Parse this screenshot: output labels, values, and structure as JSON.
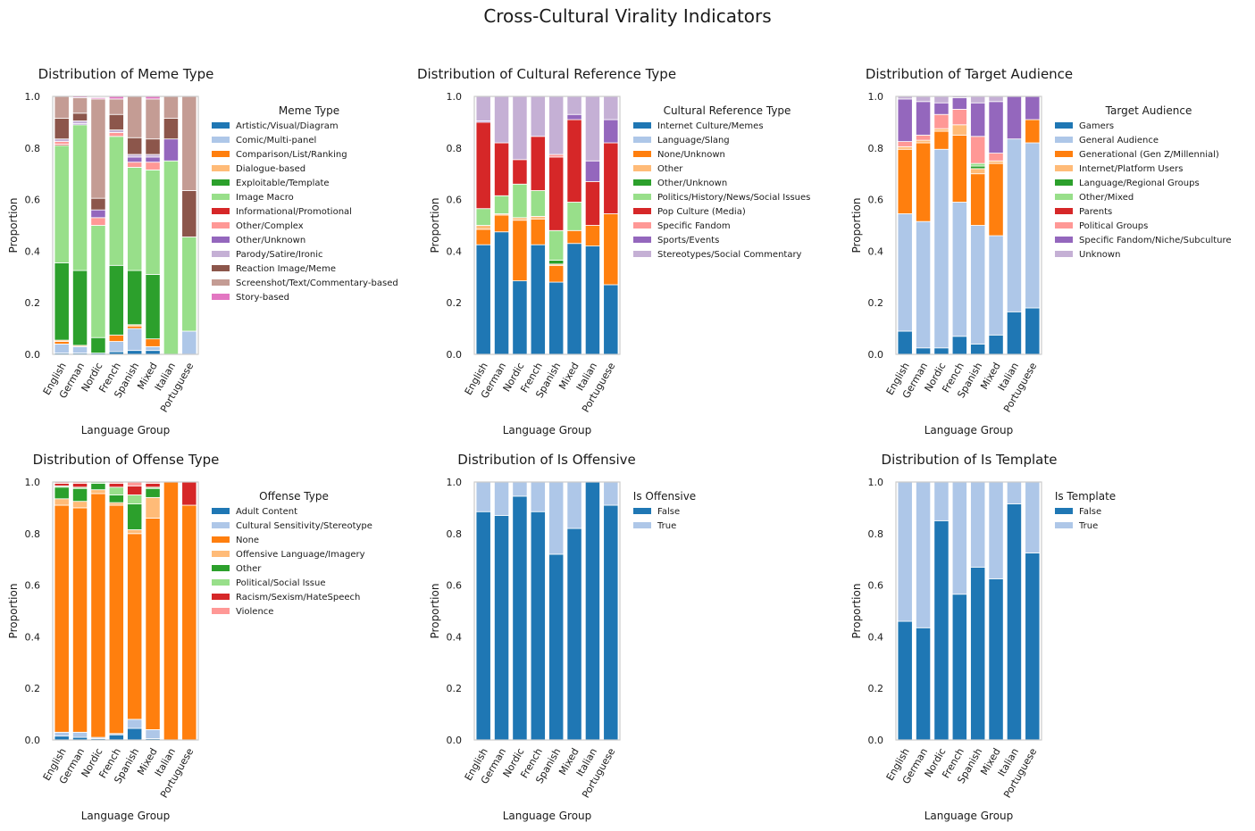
{
  "title": "Cross-Cultural Virality Indicators",
  "chart_data": [
    {
      "type": "bar",
      "stacked": true,
      "title": "Distribution of Meme Type",
      "xlabel": "Language Group",
      "ylabel": "Proportion",
      "ylim": [
        0,
        1
      ],
      "yticks": [
        "0.0",
        "0.2",
        "0.4",
        "0.6",
        "0.8",
        "1.0"
      ],
      "legend_title": "Meme Type",
      "categories": [
        "English",
        "German",
        "Nordic",
        "French",
        "Spanish",
        "Mixed",
        "Italian",
        "Portuguese"
      ],
      "series": [
        {
          "name": "Artistic/Visual/Diagram",
          "color": "#1f77b4",
          "values": [
            0.005,
            0.005,
            0.005,
            0.01,
            0.015,
            0.015,
            0,
            0
          ]
        },
        {
          "name": "Comic/Multi-panel",
          "color": "#aec7e8",
          "values": [
            0.035,
            0.025,
            0,
            0.04,
            0.085,
            0.015,
            0,
            0.09
          ]
        },
        {
          "name": "Comparison/List/Ranking",
          "color": "#ff7f0e",
          "values": [
            0.01,
            0,
            0,
            0.025,
            0.01,
            0.03,
            0,
            0
          ]
        },
        {
          "name": "Dialogue-based",
          "color": "#ffbb78",
          "values": [
            0.005,
            0.005,
            0,
            0,
            0.005,
            0,
            0,
            0
          ]
        },
        {
          "name": "Exploitable/Template",
          "color": "#2ca02c",
          "values": [
            0.3,
            0.29,
            0.06,
            0.27,
            0.21,
            0.25,
            0,
            0
          ]
        },
        {
          "name": "Image Macro",
          "color": "#98df8a",
          "values": [
            0.455,
            0.565,
            0.435,
            0.5,
            0.4,
            0.405,
            0.75,
            0.365
          ]
        },
        {
          "name": "Informational/Promotional",
          "color": "#d62728",
          "values": [
            0.005,
            0,
            0,
            0,
            0,
            0,
            0,
            0
          ]
        },
        {
          "name": "Other/Complex",
          "color": "#ff9896",
          "values": [
            0.01,
            0,
            0.03,
            0.015,
            0.02,
            0.03,
            0,
            0
          ]
        },
        {
          "name": "Other/Unknown",
          "color": "#9467bd",
          "values": [
            0,
            0.005,
            0.03,
            0,
            0.02,
            0.02,
            0.085,
            0
          ]
        },
        {
          "name": "Parody/Satire/Ironic",
          "color": "#c5b0d5",
          "values": [
            0.01,
            0.01,
            0,
            0.01,
            0.01,
            0.01,
            0,
            0
          ]
        },
        {
          "name": "Reaction Image/Meme",
          "color": "#8c564b",
          "values": [
            0.08,
            0.03,
            0.045,
            0.06,
            0.065,
            0.06,
            0.08,
            0.18
          ]
        },
        {
          "name": "Screenshot/Text/Commentary-based",
          "color": "#c49c94",
          "values": [
            0.085,
            0.06,
            0.385,
            0.06,
            0.16,
            0.155,
            0.085,
            0.365
          ]
        },
        {
          "name": "Story-based",
          "color": "#e377c2",
          "values": [
            0,
            0.005,
            0.005,
            0.01,
            0,
            0.01,
            0,
            0
          ]
        }
      ]
    },
    {
      "type": "bar",
      "stacked": true,
      "title": "Distribution of Cultural Reference Type",
      "xlabel": "Language Group",
      "ylabel": "Proportion",
      "ylim": [
        0,
        1
      ],
      "yticks": [
        "0.0",
        "0.2",
        "0.4",
        "0.6",
        "0.8",
        "1.0"
      ],
      "legend_title": "Cultural Reference Type",
      "categories": [
        "English",
        "German",
        "Nordic",
        "French",
        "Spanish",
        "Mixed",
        "Italian",
        "Portuguese"
      ],
      "series": [
        {
          "name": "Internet Culture/Memes",
          "color": "#1f77b4",
          "values": [
            0.425,
            0.475,
            0.285,
            0.425,
            0.28,
            0.43,
            0.42,
            0.27
          ]
        },
        {
          "name": "Language/Slang",
          "color": "#aec7e8",
          "values": [
            0,
            0,
            0,
            0,
            0,
            0,
            0,
            0
          ]
        },
        {
          "name": "None/Unknown",
          "color": "#ff7f0e",
          "values": [
            0.06,
            0.065,
            0.235,
            0.1,
            0.065,
            0.05,
            0.08,
            0.275
          ]
        },
        {
          "name": "Other",
          "color": "#ffbb78",
          "values": [
            0.015,
            0.005,
            0.01,
            0.01,
            0.005,
            0,
            0,
            0
          ]
        },
        {
          "name": "Other/Unknown",
          "color": "#2ca02c",
          "values": [
            0,
            0,
            0,
            0,
            0.015,
            0,
            0,
            0
          ]
        },
        {
          "name": "Politics/History/News/Social Issues",
          "color": "#98df8a",
          "values": [
            0.065,
            0.07,
            0.13,
            0.1,
            0.115,
            0.11,
            0,
            0
          ]
        },
        {
          "name": "Pop Culture (Media)",
          "color": "#d62728",
          "values": [
            0.335,
            0.205,
            0.095,
            0.21,
            0.285,
            0.32,
            0.17,
            0.275
          ]
        },
        {
          "name": "Specific Fandom",
          "color": "#ff9896",
          "values": [
            0,
            0,
            0,
            0,
            0.01,
            0,
            0,
            0
          ]
        },
        {
          "name": "Sports/Events",
          "color": "#9467bd",
          "values": [
            0.005,
            0,
            0,
            0,
            0,
            0.02,
            0.08,
            0.09
          ]
        },
        {
          "name": "Stereotypes/Social Commentary",
          "color": "#c5b0d5",
          "values": [
            0.095,
            0.18,
            0.245,
            0.155,
            0.225,
            0.07,
            0.25,
            0.09
          ]
        }
      ]
    },
    {
      "type": "bar",
      "stacked": true,
      "title": "Distribution of Target Audience",
      "xlabel": "Language Group",
      "ylabel": "Proportion",
      "ylim": [
        0,
        1
      ],
      "yticks": [
        "0.0",
        "0.2",
        "0.4",
        "0.6",
        "0.8",
        "1.0"
      ],
      "legend_title": "Target Audience",
      "categories": [
        "English",
        "German",
        "Nordic",
        "French",
        "Spanish",
        "Mixed",
        "Italian",
        "Portuguese"
      ],
      "series": [
        {
          "name": "Gamers",
          "color": "#1f77b4",
          "values": [
            0.09,
            0.025,
            0.025,
            0.07,
            0.04,
            0.075,
            0.165,
            0.18
          ]
        },
        {
          "name": "General Audience",
          "color": "#aec7e8",
          "values": [
            0.455,
            0.49,
            0.77,
            0.52,
            0.46,
            0.385,
            0.67,
            0.64
          ]
        },
        {
          "name": "Generational (Gen Z/Millennial)",
          "color": "#ff7f0e",
          "values": [
            0.25,
            0.305,
            0.07,
            0.26,
            0.2,
            0.28,
            0,
            0.09
          ]
        },
        {
          "name": "Internet/Platform Users",
          "color": "#ffbb78",
          "values": [
            0.01,
            0.01,
            0.01,
            0.04,
            0.02,
            0.01,
            0,
            0
          ]
        },
        {
          "name": "Language/Regional Groups",
          "color": "#2ca02c",
          "values": [
            0,
            0,
            0,
            0,
            0.01,
            0,
            0,
            0
          ]
        },
        {
          "name": "Other/Mixed",
          "color": "#98df8a",
          "values": [
            0,
            0,
            0,
            0,
            0.01,
            0,
            0,
            0
          ]
        },
        {
          "name": "Parents",
          "color": "#d62728",
          "values": [
            0,
            0,
            0,
            0,
            0,
            0,
            0,
            0
          ]
        },
        {
          "name": "Political Groups",
          "color": "#ff9896",
          "values": [
            0.02,
            0.02,
            0.055,
            0.06,
            0.105,
            0.03,
            0,
            0
          ]
        },
        {
          "name": "Specific Fandom/Niche/Subculture",
          "color": "#9467bd",
          "values": [
            0.165,
            0.13,
            0.045,
            0.045,
            0.13,
            0.2,
            0.165,
            0.09
          ]
        },
        {
          "name": "Unknown",
          "color": "#c5b0d5",
          "values": [
            0.01,
            0.02,
            0.025,
            0.005,
            0.025,
            0.02,
            0,
            0
          ]
        }
      ]
    },
    {
      "type": "bar",
      "stacked": true,
      "title": "Distribution of Offense Type",
      "xlabel": "Language Group",
      "ylabel": "Proportion",
      "ylim": [
        0,
        1
      ],
      "yticks": [
        "0.0",
        "0.2",
        "0.4",
        "0.6",
        "0.8",
        "1.0"
      ],
      "legend_title": "Offense Type",
      "categories": [
        "English",
        "German",
        "Nordic",
        "French",
        "Spanish",
        "Mixed",
        "Italian",
        "Portuguese"
      ],
      "series": [
        {
          "name": "Adult Content",
          "color": "#1f77b4",
          "values": [
            0.015,
            0.01,
            0.005,
            0.02,
            0.045,
            0.005,
            0,
            0
          ]
        },
        {
          "name": "Cultural Sensitivity/Stereotype",
          "color": "#aec7e8",
          "values": [
            0.015,
            0.02,
            0.005,
            0.005,
            0.035,
            0.035,
            0,
            0
          ]
        },
        {
          "name": "None",
          "color": "#ff7f0e",
          "values": [
            0.88,
            0.87,
            0.945,
            0.885,
            0.72,
            0.82,
            1.0,
            0.91
          ]
        },
        {
          "name": "Offensive Language/Imagery",
          "color": "#ffbb78",
          "values": [
            0.025,
            0.025,
            0.015,
            0.01,
            0.015,
            0.08,
            0,
            0
          ]
        },
        {
          "name": "Other",
          "color": "#2ca02c",
          "values": [
            0.045,
            0.05,
            0.025,
            0.03,
            0.1,
            0.035,
            0,
            0
          ]
        },
        {
          "name": "Political/Social Issue",
          "color": "#98df8a",
          "values": [
            0.005,
            0.005,
            0.005,
            0.03,
            0.035,
            0.005,
            0,
            0
          ]
        },
        {
          "name": "Racism/Sexism/HateSpeech",
          "color": "#d62728",
          "values": [
            0.01,
            0.015,
            0,
            0.015,
            0.035,
            0.015,
            0,
            0.09
          ]
        },
        {
          "name": "Violence",
          "color": "#ff9896",
          "values": [
            0.005,
            0.005,
            0,
            0.005,
            0.015,
            0.005,
            0,
            0
          ]
        }
      ]
    },
    {
      "type": "bar",
      "stacked": true,
      "title": "Distribution of Is Offensive",
      "xlabel": "Language Group",
      "ylabel": "Proportion",
      "ylim": [
        0,
        1
      ],
      "yticks": [
        "0.0",
        "0.2",
        "0.4",
        "0.6",
        "0.8",
        "1.0"
      ],
      "legend_title": "Is Offensive",
      "categories": [
        "English",
        "German",
        "Nordic",
        "French",
        "Spanish",
        "Mixed",
        "Italian",
        "Portuguese"
      ],
      "series": [
        {
          "name": "False",
          "color": "#1f77b4",
          "values": [
            0.885,
            0.87,
            0.945,
            0.885,
            0.72,
            0.82,
            1.0,
            0.91
          ]
        },
        {
          "name": "True",
          "color": "#aec7e8",
          "values": [
            0.115,
            0.13,
            0.055,
            0.115,
            0.28,
            0.18,
            0,
            0.09
          ]
        }
      ]
    },
    {
      "type": "bar",
      "stacked": true,
      "title": "Distribution of Is Template",
      "xlabel": "Language Group",
      "ylabel": "Proportion",
      "ylim": [
        0,
        1
      ],
      "yticks": [
        "0.0",
        "0.2",
        "0.4",
        "0.6",
        "0.8",
        "1.0"
      ],
      "legend_title": "Is Template",
      "categories": [
        "English",
        "German",
        "Nordic",
        "French",
        "Spanish",
        "Mixed",
        "Italian",
        "Portuguese"
      ],
      "series": [
        {
          "name": "False",
          "color": "#1f77b4",
          "values": [
            0.46,
            0.435,
            0.85,
            0.565,
            0.67,
            0.625,
            0.915,
            0.725
          ]
        },
        {
          "name": "True",
          "color": "#aec7e8",
          "values": [
            0.54,
            0.565,
            0.15,
            0.435,
            0.33,
            0.375,
            0.085,
            0.275
          ]
        }
      ]
    }
  ]
}
